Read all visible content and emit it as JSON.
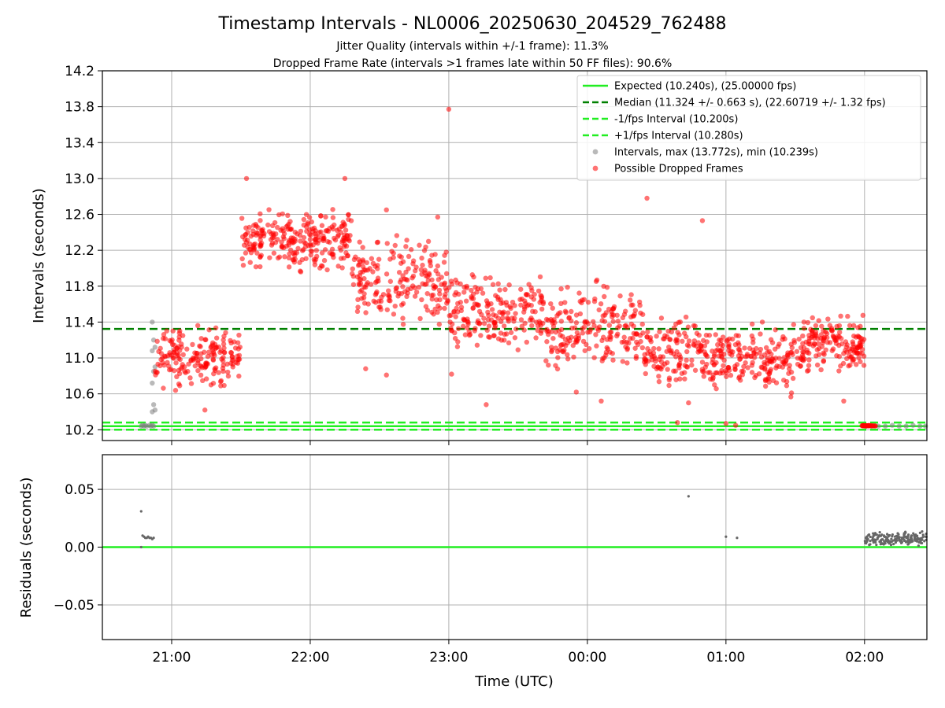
{
  "chart_data": {
    "type": "scatter",
    "title": "Timestamp Intervals - NL0006_20250630_204529_762488",
    "subtitle_lines": [
      "Jitter Quality (intervals within +/-1 frame): 11.3%",
      "Dropped Frame Rate (intervals >1 frames late within 50 FF files): 90.6%"
    ],
    "x_ticks": [
      "21:00",
      "22:00",
      "23:00",
      "00:00",
      "01:00",
      "02:00"
    ],
    "xlabel": "Time (UTC)",
    "xlim_hours": [
      20.5,
      26.45
    ],
    "upper": {
      "ylabel": "Intervals (seconds)",
      "ylim": [
        10.08,
        14.2
      ],
      "y_ticks": [
        "10.2",
        "10.6",
        "11.0",
        "11.4",
        "11.8",
        "12.2",
        "12.6",
        "13.0",
        "13.4",
        "13.8",
        "14.2"
      ],
      "expected_interval_s": 10.24,
      "median_interval_s": 11.324,
      "minus_fps_interval_s": 10.2,
      "plus_fps_interval_s": 10.28,
      "max_interval_s": 13.772,
      "min_interval_s": 10.239,
      "series": [
        {
          "name": "Intervals, max (13.772s), min (10.239s)",
          "color": "#808080",
          "points": [
            [
              20.78,
              10.24
            ],
            [
              20.79,
              10.25
            ],
            [
              20.8,
              10.24
            ],
            [
              20.81,
              10.25
            ],
            [
              20.82,
              10.24
            ],
            [
              20.84,
              10.25
            ],
            [
              20.85,
              10.24
            ],
            [
              20.86,
              10.25
            ],
            [
              20.87,
              10.24
            ],
            [
              20.86,
              10.4
            ],
            [
              20.87,
              10.48
            ],
            [
              20.88,
              10.42
            ],
            [
              20.86,
              10.72
            ],
            [
              20.87,
              10.85
            ],
            [
              20.88,
              10.9
            ],
            [
              20.86,
              11.08
            ],
            [
              20.87,
              11.2
            ],
            [
              20.88,
              11.12
            ],
            [
              20.86,
              11.4
            ],
            [
              26.01,
              10.24
            ],
            [
              26.05,
              10.24
            ],
            [
              26.1,
              10.24
            ],
            [
              26.15,
              10.24
            ],
            [
              26.2,
              10.25
            ],
            [
              26.25,
              10.24
            ],
            [
              26.3,
              10.24
            ],
            [
              26.35,
              10.25
            ],
            [
              26.4,
              10.24
            ],
            [
              26.44,
              10.24
            ]
          ]
        },
        {
          "name": "Possible Dropped Frames",
          "color": "#ff0000",
          "segments": [
            {
              "x": [
                20.88,
                21.5
              ],
              "y": [
                10.55,
                11.45
              ],
              "count": 190
            },
            {
              "x": [
                21.5,
                22.3
              ],
              "y": [
                11.9,
                12.75
              ],
              "count": 260
            },
            {
              "x": [
                22.3,
                23.0
              ],
              "y": [
                11.2,
                12.45
              ],
              "count": 200
            },
            {
              "x": [
                23.0,
                23.7
              ],
              "y": [
                10.9,
                12.1
              ],
              "count": 200
            },
            {
              "x": [
                23.7,
                24.4
              ],
              "y": [
                10.7,
                11.95
              ],
              "count": 200
            },
            {
              "x": [
                24.4,
                25.0
              ],
              "y": [
                10.5,
                11.6
              ],
              "count": 180
            },
            {
              "x": [
                25.0,
                25.55
              ],
              "y": [
                10.5,
                11.5
              ],
              "count": 160
            },
            {
              "x": [
                25.55,
                26.0
              ],
              "y": [
                10.75,
                11.55
              ],
              "count": 160
            },
            {
              "x": [
                25.98,
                26.08
              ],
              "y": [
                10.24,
                10.25
              ],
              "count": 30
            }
          ],
          "outliers": [
            [
              23.0,
              13.772
            ],
            [
              21.54,
              13.0
            ],
            [
              22.25,
              13.0
            ],
            [
              22.55,
              12.65
            ],
            [
              22.92,
              12.57
            ],
            [
              24.43,
              12.78
            ],
            [
              24.83,
              12.53
            ],
            [
              21.24,
              10.42
            ],
            [
              22.4,
              10.88
            ],
            [
              22.55,
              10.81
            ],
            [
              23.02,
              10.82
            ],
            [
              23.27,
              10.48
            ],
            [
              23.92,
              10.62
            ],
            [
              24.1,
              10.52
            ],
            [
              24.65,
              10.28
            ],
            [
              25.0,
              10.27
            ],
            [
              25.07,
              10.25
            ],
            [
              25.85,
              10.52
            ],
            [
              24.73,
              10.5
            ]
          ]
        }
      ],
      "legend": {
        "placement": "upper right",
        "entries": [
          {
            "label": "Expected (10.240s), (25.00000 fps)",
            "style": "solid",
            "color": "#22ee22"
          },
          {
            "label": "Median (11.324 +/- 0.663 s), (22.60719 +/- 1.32 fps)",
            "style": "dashed",
            "color": "#008000"
          },
          {
            "label": "-1/fps Interval (10.200s)",
            "style": "dashed",
            "color": "#22ee22"
          },
          {
            "label": "+1/fps Interval (10.280s)",
            "style": "dashed",
            "color": "#22ee22"
          },
          {
            "label": "Intervals, max (13.772s), min (10.239s)",
            "style": "marker",
            "color": "#808080"
          },
          {
            "label": "Possible Dropped Frames",
            "style": "marker",
            "color": "#ff0000"
          }
        ]
      }
    },
    "lower": {
      "ylabel": "Residuals (seconds)",
      "ylim": [
        -0.08,
        0.08
      ],
      "y_ticks": [
        "−0.05",
        "0.00",
        "0.05"
      ],
      "zero_line_color": "#22ee22",
      "points": [
        [
          20.78,
          0.031
        ],
        [
          20.78,
          0.0
        ],
        [
          20.79,
          0.01
        ],
        [
          20.8,
          0.009
        ],
        [
          20.81,
          0.008
        ],
        [
          20.82,
          0.008
        ],
        [
          20.83,
          0.009
        ],
        [
          20.84,
          0.008
        ],
        [
          20.85,
          0.008
        ],
        [
          20.86,
          0.007
        ],
        [
          20.87,
          0.008
        ],
        [
          24.73,
          0.044
        ],
        [
          25.0,
          0.009
        ],
        [
          25.08,
          0.008
        ]
      ],
      "cluster": {
        "x": [
          26.0,
          26.45
        ],
        "y": [
          0.001,
          0.014
        ],
        "count": 180
      }
    },
    "grid": true
  }
}
